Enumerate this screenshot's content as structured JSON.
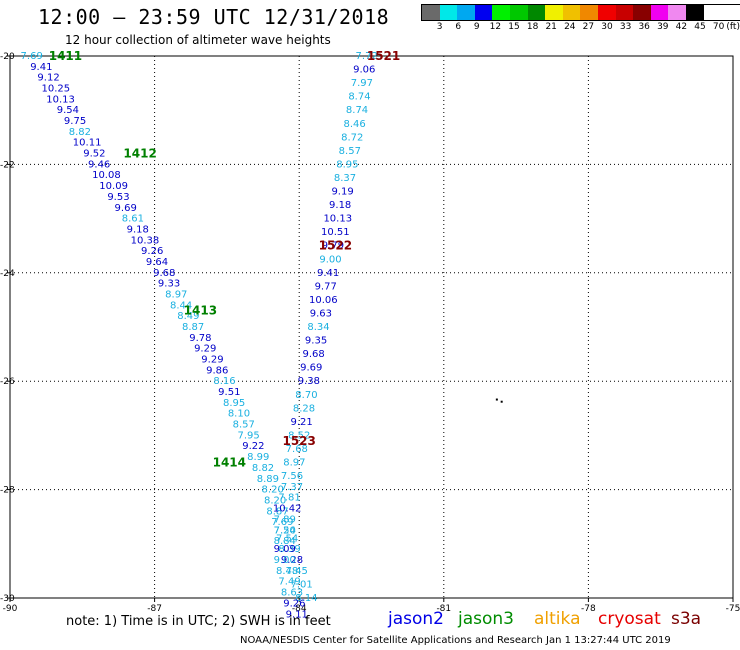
{
  "header": {
    "title": "12:00 – 23:59 UTC 12/31/2018",
    "subtitle": "12 hour collection of altimeter wave heights"
  },
  "color_scale": {
    "colors": [
      "#6a6a6a",
      "#00e8e8",
      "#00a8f0",
      "#0000f0",
      "#00f000",
      "#00c800",
      "#008800",
      "#f0f000",
      "#f0c000",
      "#f08800",
      "#f00000",
      "#c80000",
      "#880000",
      "#f000f0",
      "#f088f0",
      "#000000"
    ],
    "labels": [
      "3",
      "6",
      "9",
      "12",
      "15",
      "18",
      "21",
      "24",
      "27",
      "30",
      "33",
      "36",
      "39",
      "42",
      "45",
      "70",
      "(ft)"
    ]
  },
  "chart_data": {
    "type": "scatter",
    "x_axis": {
      "range": [
        -90,
        -75
      ],
      "ticks": [
        "-90",
        "-87",
        "-84",
        "-81",
        "-78",
        "-75"
      ]
    },
    "y_axis": {
      "range": [
        -30,
        -20
      ],
      "ticks": [
        "-20",
        "-22",
        "-24",
        "-26",
        "-28",
        "-30"
      ]
    },
    "grid": "dotted",
    "value_colors": {
      "light": "#1ab0e0",
      "dark": "#0000c8"
    },
    "tracks": [
      {
        "pass_labels": [
          {
            "text": "1411",
            "color": "#008000",
            "lon": -88.85,
            "lat": -20.0
          },
          {
            "text": "1412",
            "color": "#008000",
            "lon": -87.3,
            "lat": -21.8
          },
          {
            "text": "1413",
            "color": "#008000",
            "lon": -86.05,
            "lat": -24.7
          },
          {
            "text": "1414",
            "color": "#008000",
            "lon": -85.45,
            "lat": -27.5
          }
        ],
        "points": [
          {
            "v": "7.69",
            "lon": -89.55,
            "lat": -20.0,
            "c": "light"
          },
          {
            "v": "9.41",
            "lon": -89.35,
            "lat": -20.2,
            "c": "dark"
          },
          {
            "v": "9.12",
            "lon": -89.2,
            "lat": -20.4,
            "c": "dark"
          },
          {
            "v": "10.25",
            "lon": -89.05,
            "lat": -20.6,
            "c": "dark"
          },
          {
            "v": "10.13",
            "lon": -88.95,
            "lat": -20.8,
            "c": "dark"
          },
          {
            "v": "9.54",
            "lon": -88.8,
            "lat": -21.0,
            "c": "dark"
          },
          {
            "v": "9.75",
            "lon": -88.65,
            "lat": -21.2,
            "c": "dark"
          },
          {
            "v": "8.82",
            "lon": -88.55,
            "lat": -21.4,
            "c": "light"
          },
          {
            "v": "10.11",
            "lon": -88.4,
            "lat": -21.6,
            "c": "dark"
          },
          {
            "v": "9.52",
            "lon": -88.25,
            "lat": -21.8,
            "c": "dark"
          },
          {
            "v": "9.46",
            "lon": -88.15,
            "lat": -22.0,
            "c": "dark"
          },
          {
            "v": "10.08",
            "lon": -88.0,
            "lat": -22.2,
            "c": "dark"
          },
          {
            "v": "10.09",
            "lon": -87.85,
            "lat": -22.4,
            "c": "dark"
          },
          {
            "v": "9.53",
            "lon": -87.75,
            "lat": -22.6,
            "c": "dark"
          },
          {
            "v": "9.69",
            "lon": -87.6,
            "lat": -22.8,
            "c": "dark"
          },
          {
            "v": "8.61",
            "lon": -87.45,
            "lat": -23.0,
            "c": "light"
          },
          {
            "v": "9.18",
            "lon": -87.35,
            "lat": -23.2,
            "c": "dark"
          },
          {
            "v": "10.38",
            "lon": -87.2,
            "lat": -23.4,
            "c": "dark"
          },
          {
            "v": "9.26",
            "lon": -87.05,
            "lat": -23.6,
            "c": "dark"
          },
          {
            "v": "9.64",
            "lon": -86.95,
            "lat": -23.8,
            "c": "dark"
          },
          {
            "v": "9.68",
            "lon": -86.8,
            "lat": -24.0,
            "c": "dark"
          },
          {
            "v": "9.33",
            "lon": -86.7,
            "lat": -24.2,
            "c": "dark"
          },
          {
            "v": "8.97",
            "lon": -86.55,
            "lat": -24.4,
            "c": "light"
          },
          {
            "v": "8.44",
            "lon": -86.45,
            "lat": -24.6,
            "c": "light"
          },
          {
            "v": "8.49",
            "lon": -86.3,
            "lat": -24.8,
            "c": "light"
          },
          {
            "v": "8.87",
            "lon": -86.2,
            "lat": -25.0,
            "c": "light"
          },
          {
            "v": "9.78",
            "lon": -86.05,
            "lat": -25.2,
            "c": "dark"
          },
          {
            "v": "9.29",
            "lon": -85.95,
            "lat": -25.4,
            "c": "dark"
          },
          {
            "v": "9.29",
            "lon": -85.8,
            "lat": -25.6,
            "c": "dark"
          },
          {
            "v": "9.86",
            "lon": -85.7,
            "lat": -25.8,
            "c": "dark"
          },
          {
            "v": "8.16",
            "lon": -85.55,
            "lat": -26.0,
            "c": "light"
          },
          {
            "v": "9.51",
            "lon": -85.45,
            "lat": -26.2,
            "c": "dark"
          },
          {
            "v": "8.95",
            "lon": -85.35,
            "lat": -26.4,
            "c": "light"
          },
          {
            "v": "8.10",
            "lon": -85.25,
            "lat": -26.6,
            "c": "light"
          },
          {
            "v": "8.57",
            "lon": -85.15,
            "lat": -26.8,
            "c": "light"
          },
          {
            "v": "7.95",
            "lon": -85.05,
            "lat": -27.0,
            "c": "light"
          },
          {
            "v": "9.22",
            "lon": -84.95,
            "lat": -27.2,
            "c": "dark"
          },
          {
            "v": "8.99",
            "lon": -84.85,
            "lat": -27.4,
            "c": "light"
          },
          {
            "v": "8.82",
            "lon": -84.75,
            "lat": -27.6,
            "c": "light"
          },
          {
            "v": "8.89",
            "lon": -84.65,
            "lat": -27.8,
            "c": "light"
          },
          {
            "v": "8.20",
            "lon": -84.55,
            "lat": -28.0,
            "c": "light"
          },
          {
            "v": "8.20",
            "lon": -84.5,
            "lat": -28.2,
            "c": "light"
          },
          {
            "v": "8.87",
            "lon": -84.45,
            "lat": -28.4,
            "c": "light"
          },
          {
            "v": "7.69",
            "lon": -84.35,
            "lat": -28.6,
            "c": "light"
          },
          {
            "v": "7.54",
            "lon": -84.3,
            "lat": -28.75,
            "c": "light"
          },
          {
            "v": "7.54",
            "lon": -84.25,
            "lat": -28.9,
            "c": "light"
          },
          {
            "v": "8.39",
            "lon": -84.2,
            "lat": -29.1,
            "c": "light"
          },
          {
            "v": "9.28",
            "lon": -84.15,
            "lat": -29.3,
            "c": "dark"
          },
          {
            "v": "7.45",
            "lon": -84.05,
            "lat": -29.5,
            "c": "light"
          },
          {
            "v": "7.01",
            "lon": -83.95,
            "lat": -29.75,
            "c": "light"
          },
          {
            "v": "8.14",
            "lon": -83.85,
            "lat": -30.0,
            "c": "light"
          }
        ]
      },
      {
        "pass_labels": [
          {
            "text": "1521",
            "color": "#880000",
            "lon": -82.25,
            "lat": -20.0
          },
          {
            "text": "1522",
            "color": "#880000",
            "lon": -83.25,
            "lat": -23.5
          },
          {
            "text": "1523",
            "color": "#880000",
            "lon": -84.0,
            "lat": -27.1
          }
        ],
        "points": [
          {
            "v": "7.72",
            "lon": -82.6,
            "lat": -20.0,
            "c": "light"
          },
          {
            "v": "9.06",
            "lon": -82.65,
            "lat": -20.25,
            "c": "dark"
          },
          {
            "v": "7.97",
            "lon": -82.7,
            "lat": -20.5,
            "c": "light"
          },
          {
            "v": "8.74",
            "lon": -82.75,
            "lat": -20.75,
            "c": "light"
          },
          {
            "v": "8.74",
            "lon": -82.8,
            "lat": -21.0,
            "c": "light"
          },
          {
            "v": "8.46",
            "lon": -82.85,
            "lat": -21.25,
            "c": "light"
          },
          {
            "v": "8.72",
            "lon": -82.9,
            "lat": -21.5,
            "c": "light"
          },
          {
            "v": "8.57",
            "lon": -82.95,
            "lat": -21.75,
            "c": "light"
          },
          {
            "v": "8.95",
            "lon": -83.0,
            "lat": -22.0,
            "c": "light"
          },
          {
            "v": "8.37",
            "lon": -83.05,
            "lat": -22.25,
            "c": "light"
          },
          {
            "v": "9.19",
            "lon": -83.1,
            "lat": -22.5,
            "c": "dark"
          },
          {
            "v": "9.18",
            "lon": -83.15,
            "lat": -22.75,
            "c": "dark"
          },
          {
            "v": "10.13",
            "lon": -83.2,
            "lat": -23.0,
            "c": "dark"
          },
          {
            "v": "10.51",
            "lon": -83.25,
            "lat": -23.25,
            "c": "dark"
          },
          {
            "v": "9.79",
            "lon": -83.3,
            "lat": -23.5,
            "c": "dark"
          },
          {
            "v": "9.00",
            "lon": -83.35,
            "lat": -23.75,
            "c": "light"
          },
          {
            "v": "9.41",
            "lon": -83.4,
            "lat": -24.0,
            "c": "dark"
          },
          {
            "v": "9.77",
            "lon": -83.45,
            "lat": -24.25,
            "c": "dark"
          },
          {
            "v": "10.06",
            "lon": -83.5,
            "lat": -24.5,
            "c": "dark"
          },
          {
            "v": "9.63",
            "lon": -83.55,
            "lat": -24.75,
            "c": "dark"
          },
          {
            "v": "8.34",
            "lon": -83.6,
            "lat": -25.0,
            "c": "light"
          },
          {
            "v": "9.35",
            "lon": -83.65,
            "lat": -25.25,
            "c": "dark"
          },
          {
            "v": "9.68",
            "lon": -83.7,
            "lat": -25.5,
            "c": "dark"
          },
          {
            "v": "9.69",
            "lon": -83.75,
            "lat": -25.75,
            "c": "dark"
          },
          {
            "v": "9.38",
            "lon": -83.8,
            "lat": -26.0,
            "c": "dark"
          },
          {
            "v": "8.70",
            "lon": -83.85,
            "lat": -26.25,
            "c": "light"
          },
          {
            "v": "8.28",
            "lon": -83.9,
            "lat": -26.5,
            "c": "light"
          },
          {
            "v": "9.21",
            "lon": -83.95,
            "lat": -26.75,
            "c": "dark"
          },
          {
            "v": "8.52",
            "lon": -84.0,
            "lat": -27.0,
            "c": "light"
          },
          {
            "v": "7.68",
            "lon": -84.05,
            "lat": -27.25,
            "c": "light"
          },
          {
            "v": "8.97",
            "lon": -84.1,
            "lat": -27.5,
            "c": "light"
          },
          {
            "v": "7.56",
            "lon": -84.15,
            "lat": -27.75,
            "c": "light"
          },
          {
            "v": "7.37",
            "lon": -84.15,
            "lat": -27.95,
            "c": "light"
          },
          {
            "v": "7.81",
            "lon": -84.2,
            "lat": -28.15,
            "c": "light"
          },
          {
            "v": "10.42",
            "lon": -84.25,
            "lat": -28.35,
            "c": "dark"
          },
          {
            "v": "7.89",
            "lon": -84.3,
            "lat": -28.55,
            "c": "light"
          },
          {
            "v": "7.20",
            "lon": -84.3,
            "lat": -28.75,
            "c": "light"
          },
          {
            "v": "8.84",
            "lon": -84.3,
            "lat": -28.95,
            "c": "light"
          },
          {
            "v": "9.09",
            "lon": -84.3,
            "lat": -29.1,
            "c": "dark"
          },
          {
            "v": "9.00",
            "lon": -84.3,
            "lat": -29.3,
            "c": "light"
          },
          {
            "v": "8.48",
            "lon": -84.25,
            "lat": -29.5,
            "c": "light"
          },
          {
            "v": "7.49",
            "lon": -84.2,
            "lat": -29.7,
            "c": "light"
          },
          {
            "v": "8.63",
            "lon": -84.15,
            "lat": -29.9,
            "c": "light"
          },
          {
            "v": "9.26",
            "lon": -84.1,
            "lat": -30.1,
            "c": "dark"
          },
          {
            "v": "9.11",
            "lon": -84.05,
            "lat": -30.3,
            "c": "dark"
          }
        ]
      }
    ]
  },
  "footer": {
    "note": "note: 1) Time is in UTC; 2) SWH is in feet",
    "satellites": [
      {
        "name": "jason2",
        "color": "#0000e6"
      },
      {
        "name": "jason3",
        "color": "#008c00"
      },
      {
        "name": "altika",
        "color": "#f0a000"
      },
      {
        "name": "cryosat",
        "color": "#e60000"
      },
      {
        "name": "s3a",
        "color": "#7a0000"
      }
    ],
    "credit": "NOAA/NESDIS Center for Satellite Applications and Research   Jan  1 13:27:44 UTC 2019"
  }
}
